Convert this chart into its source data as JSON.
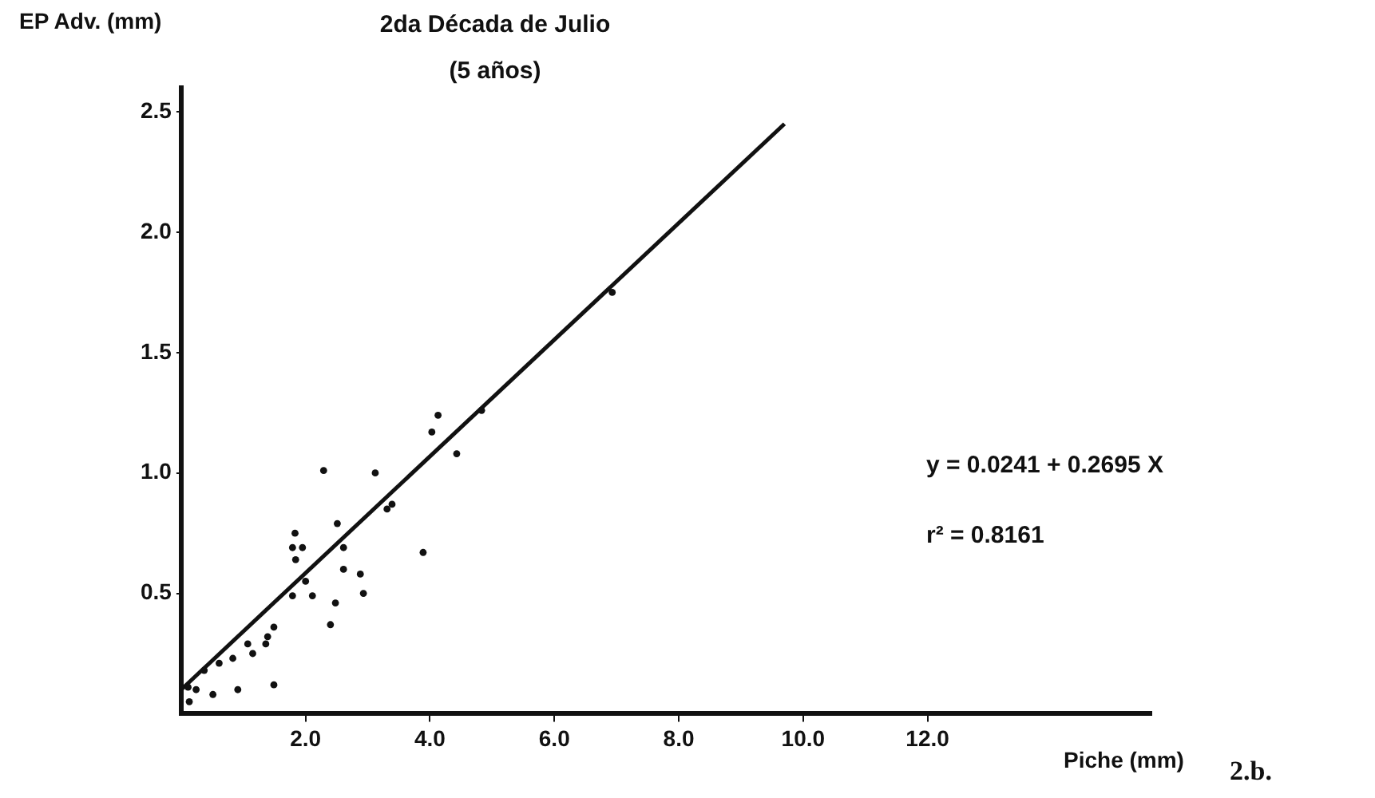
{
  "chart_data": {
    "type": "scatter",
    "title": "2da Década de Julio",
    "subtitle": "(5 años)",
    "xlabel": "Piche (mm)",
    "ylabel": "EP Adv. (mm)",
    "xlim": [
      0,
      15.6
    ],
    "ylim": [
      0,
      2.6
    ],
    "xticks": [
      {
        "value": 2,
        "label": "2.0"
      },
      {
        "value": 4,
        "label": "4.0"
      },
      {
        "value": 6,
        "label": "6.0"
      },
      {
        "value": 8,
        "label": "8.0"
      },
      {
        "value": 10,
        "label": "10.0"
      },
      {
        "value": 12,
        "label": "12.0"
      }
    ],
    "yticks": [
      {
        "value": 0.5,
        "label": "0.5"
      },
      {
        "value": 1,
        "label": "1.0"
      },
      {
        "value": 1.5,
        "label": "1.5"
      },
      {
        "value": 2,
        "label": "2.0"
      },
      {
        "value": 2.5,
        "label": "2.5"
      }
    ],
    "grid": false,
    "legend": false,
    "marker": "circle",
    "series": [
      {
        "color": "#111111",
        "x": [
          1.83,
          1.79,
          1.95,
          1.84,
          2.61,
          2.61,
          2.88,
          2.93,
          2.48,
          2.4,
          2.11,
          2.0,
          1.79,
          1.49,
          1.39,
          1.36,
          1.15,
          1.07,
          0.83,
          0.61,
          0.37,
          0.24,
          0.51,
          0.91,
          1.49,
          0.13,
          0.11,
          4.13,
          4.03,
          4.83,
          4.43,
          2.29,
          3.12,
          3.39,
          3.31,
          2.51,
          3.89,
          6.93
        ],
        "values": [
          0.75,
          0.69,
          0.69,
          0.64,
          0.69,
          0.6,
          0.58,
          0.5,
          0.46,
          0.37,
          0.49,
          0.55,
          0.49,
          0.36,
          0.32,
          0.29,
          0.25,
          0.29,
          0.23,
          0.21,
          0.18,
          0.1,
          0.08,
          0.1,
          0.12,
          0.05,
          0.11,
          1.24,
          1.17,
          1.26,
          1.08,
          1.01,
          1.0,
          0.87,
          0.85,
          0.79,
          0.67,
          1.75
        ]
      },
      {
        "type": "line",
        "color": "#111111",
        "marker": "none",
        "x": [
          0,
          9.7
        ],
        "values": [
          0.1,
          2.45
        ]
      }
    ],
    "annotations": [
      "y = 0.0241 + 0.2695 X",
      "r² = 0.8161",
      "2.b."
    ]
  }
}
